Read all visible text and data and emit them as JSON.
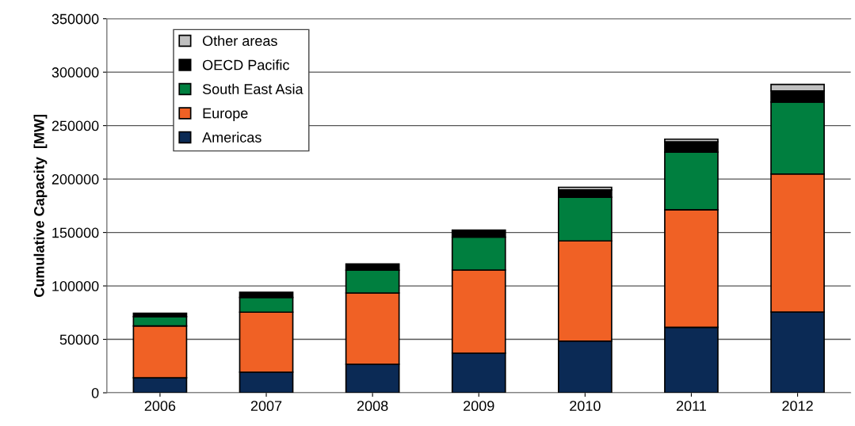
{
  "chart_data": {
    "type": "bar",
    "stacked": true,
    "ylabel": "Cumulative Capacity  [MW]",
    "categories": [
      "2006",
      "2007",
      "2008",
      "2009",
      "2010",
      "2011",
      "2012"
    ],
    "series": [
      {
        "name": "Americas",
        "color": "#0b2a55",
        "values": [
          14000,
          19300,
          26700,
          37100,
          48400,
          61300,
          75600
        ]
      },
      {
        "name": "Europe",
        "color": "#f06125",
        "values": [
          48500,
          56100,
          66700,
          77800,
          93700,
          110000,
          129100
        ]
      },
      {
        "name": "South East Asia",
        "color": "#007f3f",
        "values": [
          8700,
          13800,
          21300,
          30700,
          40800,
          53900,
          67400
        ]
      },
      {
        "name": "OECD Pacific",
        "color": "#000000",
        "values": [
          3200,
          4800,
          5900,
          6600,
          6900,
          9600,
          10400
        ]
      },
      {
        "name": "Other areas",
        "color": "#c0c0c0",
        "values": [
          null,
          null,
          null,
          null,
          2500,
          2500,
          6000
        ]
      }
    ],
    "ylim": [
      0,
      350000
    ],
    "yticks": [
      0,
      50000,
      100000,
      150000,
      200000,
      250000,
      300000,
      350000
    ],
    "grid": "y",
    "legend": "top left"
  }
}
